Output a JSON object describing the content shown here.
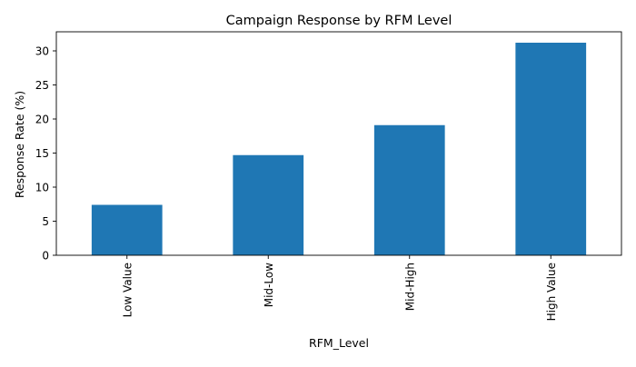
{
  "chart_data": {
    "type": "bar",
    "title": "Campaign Response by RFM Level",
    "xlabel": "RFM_Level",
    "ylabel": "Response Rate (%)",
    "categories": [
      "Low Value",
      "Mid-Low",
      "Mid-High",
      "High Value"
    ],
    "values": [
      7.4,
      14.7,
      19.1,
      31.2
    ],
    "ylim": [
      0,
      32.8
    ],
    "yticks": [
      0,
      5,
      10,
      15,
      20,
      25,
      30
    ],
    "bar_color": "#1f77b4",
    "grid": false,
    "legend": "none"
  }
}
